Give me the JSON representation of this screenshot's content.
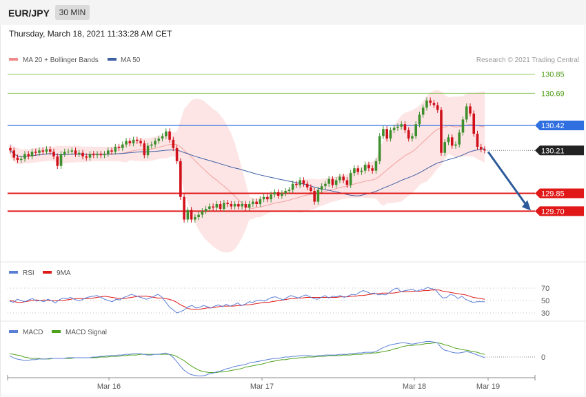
{
  "header": {
    "symbol": "EUR/JPY",
    "timeframe": "30 MIN",
    "datetime": "Thursday, March 18, 2021 11:33:28 AM CET"
  },
  "colors": {
    "up": "#3d8f2e",
    "down": "#d0111b",
    "bollinger_fill": "#fde0e0",
    "ma20": "#f2a0a0",
    "ma50": "#3e5fa6",
    "resistance": "#8ac45a",
    "pivot": "#2f6fe0",
    "support": "#e01818",
    "arrow": "#2d5a9a",
    "rsi": "#5a7fd6",
    "rsi_ma": "#e01818",
    "macd": "#5a7fd6",
    "macd_signal": "#4ea11c"
  },
  "chart_data": [
    {
      "type": "candlestick",
      "title": "EUR/JPY",
      "legend": [
        {
          "name": "MA 20 + Bollinger Bands",
          "color": "#f08a8a"
        },
        {
          "name": "MA 50",
          "color": "#3e5fa6"
        }
      ],
      "credit": "Research © 2021 Trading Central",
      "x_ticks": [
        "Mar 16",
        "Mar 17",
        "Mar 18",
        "Mar 19"
      ],
      "price_range": [
        129.5,
        131.0
      ],
      "levels": [
        {
          "value": 130.85,
          "label": "130.85",
          "kind": "resistance"
        },
        {
          "value": 130.69,
          "label": "130.69",
          "kind": "resistance"
        },
        {
          "value": 130.42,
          "label": "130.42",
          "kind": "pivot"
        },
        {
          "value": 129.85,
          "label": "129.85",
          "kind": "support"
        },
        {
          "value": 129.7,
          "label": "129.70",
          "kind": "support"
        }
      ],
      "last_price": 130.21,
      "last_price_label": "130.21",
      "forecast_target": 129.7,
      "close": [
        130.21,
        130.15,
        130.13,
        130.14,
        130.18,
        130.16,
        130.2,
        130.19,
        130.21,
        130.2,
        130.22,
        130.2,
        130.16,
        130.08,
        130.18,
        130.2,
        130.2,
        130.21,
        130.18,
        130.19,
        130.16,
        130.15,
        130.18,
        130.17,
        130.18,
        130.17,
        130.18,
        130.21,
        130.2,
        130.24,
        130.23,
        130.26,
        130.29,
        130.27,
        130.3,
        130.29,
        130.27,
        130.17,
        130.25,
        130.26,
        130.29,
        130.31,
        130.33,
        130.37,
        130.3,
        130.23,
        130.12,
        129.82,
        129.63,
        129.71,
        129.63,
        129.65,
        129.67,
        129.7,
        129.72,
        129.74,
        129.73,
        129.76,
        129.72,
        129.77,
        129.76,
        129.74,
        129.76,
        129.74,
        129.76,
        129.73,
        129.76,
        129.78,
        129.76,
        129.8,
        129.82,
        129.8,
        129.84,
        129.86,
        129.83,
        129.85,
        129.87,
        129.88,
        129.93,
        129.92,
        129.96,
        129.93,
        129.9,
        129.87,
        129.78,
        129.88,
        129.91,
        129.93,
        129.97,
        129.92,
        129.96,
        129.99,
        129.96,
        129.92,
        130.02,
        130.06,
        130.03,
        130.04,
        130.09,
        130.06,
        130.04,
        130.12,
        130.33,
        130.39,
        130.31,
        130.38,
        130.4,
        130.41,
        130.43,
        130.38,
        130.31,
        130.33,
        130.43,
        130.51,
        130.57,
        130.63,
        130.61,
        130.59,
        130.55,
        130.19,
        130.28,
        130.32,
        130.25,
        130.26,
        130.36,
        130.47,
        130.58,
        130.52,
        130.35,
        130.24,
        130.22,
        130.21
      ]
    },
    {
      "type": "line",
      "title": "RSI",
      "series": [
        {
          "name": "RSI",
          "color": "#5a7fd6"
        },
        {
          "name": "9MA",
          "color": "#e01818"
        }
      ],
      "y_ticks": [
        70,
        50,
        30
      ],
      "rsi": [
        49,
        47,
        52,
        50,
        48,
        51,
        53,
        49,
        50,
        48,
        52,
        50,
        46,
        51,
        54,
        53,
        55,
        52,
        50,
        51,
        54,
        56,
        57,
        58,
        55,
        52,
        50,
        48,
        52,
        51,
        55,
        57,
        60,
        58,
        56,
        54,
        52,
        54,
        57,
        60,
        56,
        48,
        40,
        35,
        30,
        32,
        35,
        40,
        42,
        38,
        39,
        42,
        40,
        38,
        41,
        43,
        40,
        44,
        41,
        43,
        46,
        42,
        44,
        48,
        47,
        50,
        51,
        49,
        52,
        55,
        56,
        53,
        51,
        55,
        58,
        56,
        54,
        57,
        59,
        56,
        53,
        52,
        55,
        58,
        54,
        57,
        56,
        58,
        55,
        57,
        60,
        59,
        63,
        66,
        64,
        61,
        62,
        59,
        60,
        59,
        63,
        68,
        70,
        64,
        66,
        67,
        68,
        65,
        67,
        68,
        71,
        69,
        68,
        60,
        54,
        55,
        60,
        58,
        53,
        57,
        52,
        49,
        47,
        48,
        48,
        48
      ],
      "rsi_ma": [
        50,
        49,
        47,
        47,
        48,
        49,
        50,
        51,
        50,
        51,
        50,
        50,
        50,
        50,
        50,
        51,
        52,
        53,
        53,
        53,
        53,
        53,
        54,
        55,
        56,
        57,
        56,
        55,
        54,
        53,
        53,
        54,
        55,
        56,
        57,
        57,
        57,
        56,
        55,
        54,
        54,
        53,
        52,
        50,
        47,
        43,
        40,
        37,
        36,
        36,
        36,
        37,
        38,
        38,
        39,
        40,
        41,
        41,
        41,
        41,
        42,
        42,
        43,
        43,
        44,
        45,
        46,
        47,
        47,
        48,
        49,
        50,
        51,
        52,
        53,
        53,
        54,
        54,
        55,
        55,
        55,
        55,
        55,
        55,
        55,
        55,
        55,
        56,
        56,
        56,
        57,
        57,
        58,
        58,
        59,
        60,
        61,
        61,
        62,
        62,
        62,
        62,
        63,
        64,
        64,
        64,
        65,
        65,
        65,
        66,
        66,
        67,
        67,
        67,
        65,
        64,
        63,
        62,
        61,
        60,
        59,
        57,
        55,
        54,
        53,
        52
      ]
    },
    {
      "type": "line",
      "title": "MACD",
      "series": [
        {
          "name": "MACD",
          "color": "#5a7fd6"
        },
        {
          "name": "MACD Signal",
          "color": "#4ea11c"
        }
      ],
      "y_ticks": [
        0
      ],
      "macd": [
        0.02,
        -0.01,
        -0.03,
        -0.04,
        -0.05,
        -0.05,
        -0.04,
        -0.04,
        -0.03,
        -0.03,
        -0.03,
        -0.02,
        -0.02,
        -0.02,
        -0.02,
        -0.02,
        -0.01,
        -0.01,
        -0.01,
        -0.01,
        -0.01,
        -0.01,
        -0.01,
        0.0,
        0.0,
        0.01,
        0.01,
        0.02,
        0.02,
        0.02,
        0.03,
        0.03,
        0.04,
        0.04,
        0.05,
        0.05,
        0.05,
        0.04,
        0.03,
        0.03,
        0.04,
        0.04,
        0.05,
        0.06,
        0.04,
        0.0,
        -0.06,
        -0.13,
        -0.19,
        -0.23,
        -0.26,
        -0.27,
        -0.28,
        -0.28,
        -0.27,
        -0.25,
        -0.24,
        -0.22,
        -0.21,
        -0.19,
        -0.17,
        -0.16,
        -0.14,
        -0.13,
        -0.12,
        -0.11,
        -0.09,
        -0.08,
        -0.07,
        -0.06,
        -0.05,
        -0.04,
        -0.03,
        -0.02,
        -0.02,
        -0.01,
        0.0,
        0.0,
        0.01,
        0.01,
        0.02,
        0.02,
        0.02,
        0.02,
        0.01,
        0.02,
        0.02,
        0.03,
        0.03,
        0.03,
        0.03,
        0.04,
        0.04,
        0.04,
        0.05,
        0.05,
        0.06,
        0.06,
        0.07,
        0.07,
        0.07,
        0.08,
        0.11,
        0.14,
        0.16,
        0.18,
        0.19,
        0.2,
        0.21,
        0.21,
        0.2,
        0.19,
        0.2,
        0.21,
        0.22,
        0.23,
        0.23,
        0.22,
        0.21,
        0.14,
        0.1,
        0.09,
        0.07,
        0.06,
        0.06,
        0.07,
        0.08,
        0.07,
        0.05,
        0.03,
        0.01,
        -0.01
      ],
      "signal": [
        0.05,
        0.04,
        0.03,
        0.02,
        0.0,
        -0.01,
        -0.02,
        -0.02,
        -0.02,
        -0.03,
        -0.03,
        -0.03,
        -0.02,
        -0.02,
        -0.02,
        -0.02,
        -0.02,
        -0.02,
        -0.01,
        -0.01,
        -0.01,
        -0.01,
        -0.01,
        -0.01,
        -0.01,
        0.0,
        0.0,
        0.0,
        0.01,
        0.01,
        0.01,
        0.02,
        0.02,
        0.03,
        0.03,
        0.03,
        0.04,
        0.04,
        0.04,
        0.04,
        0.04,
        0.04,
        0.04,
        0.04,
        0.04,
        0.03,
        0.01,
        -0.02,
        -0.05,
        -0.09,
        -0.13,
        -0.16,
        -0.19,
        -0.21,
        -0.22,
        -0.23,
        -0.23,
        -0.23,
        -0.22,
        -0.22,
        -0.21,
        -0.2,
        -0.19,
        -0.18,
        -0.17,
        -0.15,
        -0.14,
        -0.13,
        -0.12,
        -0.11,
        -0.1,
        -0.08,
        -0.07,
        -0.06,
        -0.05,
        -0.04,
        -0.04,
        -0.03,
        -0.02,
        -0.02,
        -0.01,
        -0.01,
        0.0,
        0.0,
        0.0,
        0.01,
        0.01,
        0.01,
        0.02,
        0.02,
        0.02,
        0.02,
        0.03,
        0.03,
        0.03,
        0.04,
        0.04,
        0.04,
        0.05,
        0.05,
        0.06,
        0.06,
        0.07,
        0.08,
        0.09,
        0.1,
        0.12,
        0.13,
        0.15,
        0.16,
        0.17,
        0.17,
        0.18,
        0.18,
        0.19,
        0.2,
        0.2,
        0.21,
        0.21,
        0.2,
        0.18,
        0.17,
        0.15,
        0.13,
        0.12,
        0.11,
        0.1,
        0.09,
        0.08,
        0.07,
        0.05,
        0.04
      ]
    }
  ]
}
